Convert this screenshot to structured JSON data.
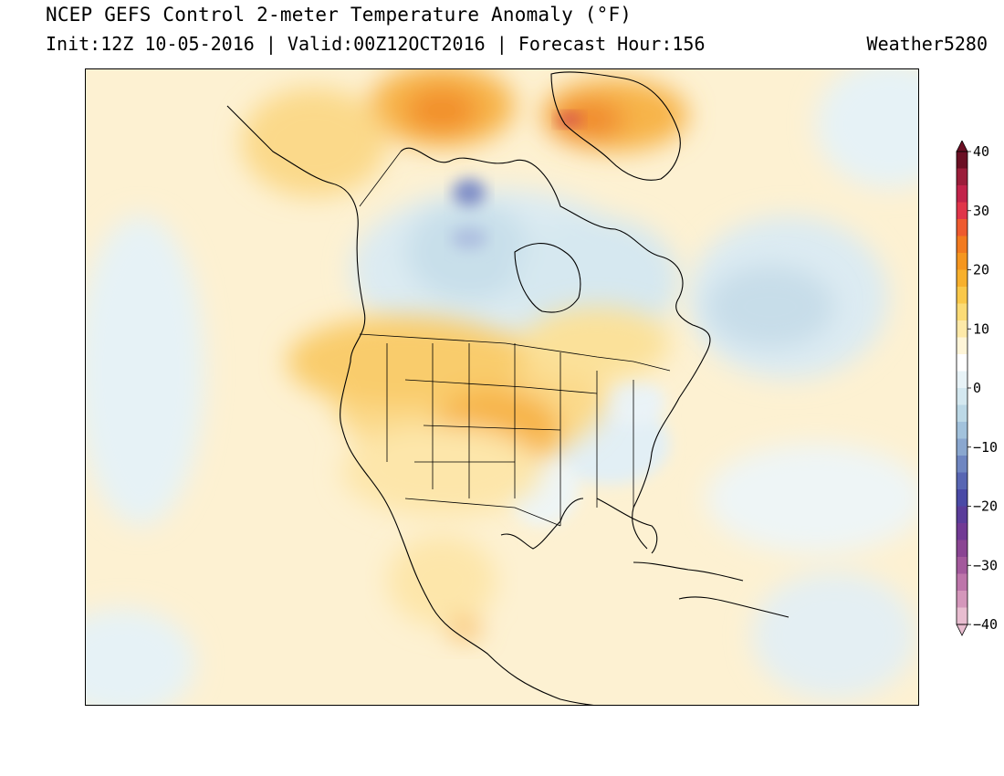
{
  "header": {
    "title": "NCEP GEFS Control 2-meter Temperature Anomaly (°F)",
    "init": "Init:12Z 10-05-2016",
    "separator": "|",
    "valid": "Valid:00Z12OCT2016",
    "forecast_hour": "Forecast Hour:156",
    "credit": "Weather5280"
  },
  "colorbar": {
    "unit": "°F",
    "tick_labels": [
      "40",
      "30",
      "20",
      "10",
      "0",
      "−10",
      "−20",
      "−30",
      "−40"
    ],
    "colors": [
      "#6b0f24",
      "#9b1d3a",
      "#c2234a",
      "#e0354a",
      "#ee5a2f",
      "#f27a1f",
      "#f5961f",
      "#f7b02d",
      "#f9c84a",
      "#fbdb76",
      "#fde9a8",
      "#fef5d8",
      "#ffffff",
      "#e8f3f7",
      "#d4e8f0",
      "#bcd8e6",
      "#a2c2dc",
      "#8aa7cf",
      "#6f86c1",
      "#5866b3",
      "#4a4aa6",
      "#5a3d9a",
      "#713a94",
      "#8a4593",
      "#a3599c",
      "#bd75aa",
      "#d497bb",
      "#e8bdd0"
    ]
  },
  "map": {
    "projection": "lambert-conformal",
    "region": "North America",
    "variable": "2-meter temperature anomaly",
    "warm_regions": [
      "Northern Plains",
      "Great Plains",
      "Greenland",
      "Baffin Bay region",
      "Southwest"
    ],
    "cool_regions": [
      "Central Canada",
      "Hudson Bay",
      "Labrador Sea",
      "Ohio Valley",
      "Southeast"
    ]
  }
}
